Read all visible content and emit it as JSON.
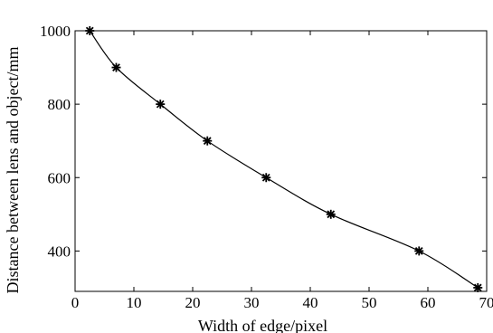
{
  "chart_data": {
    "type": "line",
    "title": "",
    "xlabel": "Width of edge/pixel",
    "ylabel": "Distance between lens and object/mm",
    "xlim": [
      0,
      70
    ],
    "ylim": [
      290,
      1000
    ],
    "xticks": [
      0,
      10,
      20,
      30,
      40,
      50,
      60,
      70
    ],
    "yticks": [
      400,
      600,
      800,
      1000
    ],
    "grid": false,
    "legend": "none",
    "series": [
      {
        "marker": "star",
        "color": "#000000",
        "x": [
          2.5,
          7,
          14.5,
          22.5,
          32.5,
          43.5,
          58.5,
          68.5
        ],
        "y": [
          1000,
          900,
          800,
          700,
          600,
          500,
          400,
          300
        ]
      }
    ]
  }
}
